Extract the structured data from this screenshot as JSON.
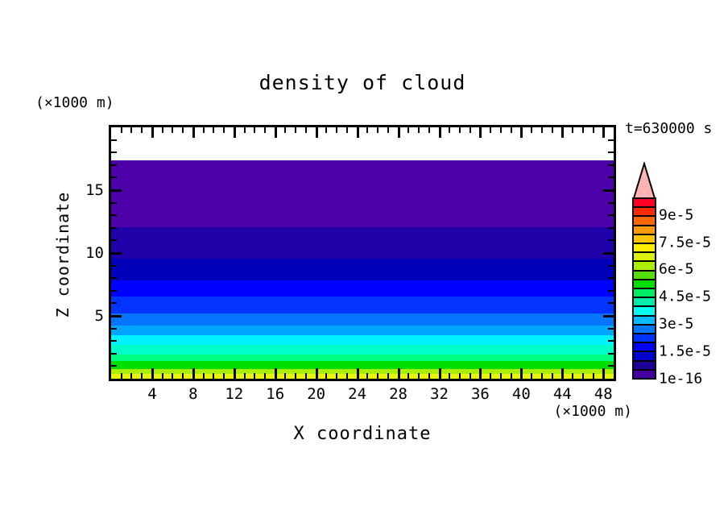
{
  "header": {
    "title": "density of cloud",
    "time_annotation": "t=630000 s"
  },
  "chart_data": {
    "type": "heatmap",
    "subtype": "filled-contour, field uniform along x (horizontal bands)",
    "title": "density of cloud",
    "xlabel": "X coordinate",
    "ylabel": "Z coordinate",
    "x_unit": "(×1000 m)",
    "y_unit": "(×1000 m)",
    "time_annotation": "t=630000 s",
    "xlim": [
      0,
      49
    ],
    "ylim": [
      0,
      20
    ],
    "x_major_ticks": [
      4,
      8,
      12,
      16,
      20,
      24,
      28,
      32,
      36,
      40,
      44,
      48
    ],
    "x_minor_step": 1,
    "y_major_ticks": [
      5,
      10,
      15
    ],
    "y_minor_step": 1,
    "grid": false,
    "bands_top_to_bottom": [
      {
        "z_from": 17.2,
        "z_to": 20.0,
        "value_range": "0 (no cloud)",
        "color": "#ffffff",
        "height_frac": 0.133
      },
      {
        "z_from": 12.0,
        "z_to": 17.2,
        "value_range": "1e-16 - 0.5e-5",
        "color": "#4b00a8",
        "height_frac": 0.266
      },
      {
        "z_from": 9.5,
        "z_to": 12.0,
        "value_range": "0.5e-5 - 1e-5",
        "color": "#2000a8",
        "height_frac": 0.1234
      },
      {
        "z_from": 7.8,
        "z_to": 9.5,
        "value_range": "1e-5 - 1.5e-5",
        "color": "#0000bb",
        "height_frac": 0.0865
      },
      {
        "z_from": 6.5,
        "z_to": 7.8,
        "value_range": "1.5e-5 - 2e-5",
        "color": "#0000ff",
        "height_frac": 0.0641
      },
      {
        "z_from": 5.2,
        "z_to": 6.5,
        "value_range": "2e-5 - 2.5e-5",
        "color": "#0333ff",
        "height_frac": 0.0673
      },
      {
        "z_from": 4.2,
        "z_to": 5.2,
        "value_range": "2.5e-5 - 3e-5",
        "color": "#0575ff",
        "height_frac": 0.0497
      },
      {
        "z_from": 3.4,
        "z_to": 4.2,
        "value_range": "3e-5 - 3.5e-5",
        "color": "#00a5ff",
        "height_frac": 0.0369
      },
      {
        "z_from": 2.7,
        "z_to": 3.4,
        "value_range": "3.5e-5 - 4e-5",
        "color": "#00f2ff",
        "height_frac": 0.0385
      },
      {
        "z_from": 1.9,
        "z_to": 2.7,
        "value_range": "4e-5 - 4.5e-5",
        "color": "#00ffc8",
        "height_frac": 0.04
      },
      {
        "z_from": 1.4,
        "z_to": 1.9,
        "value_range": "4.5e-5 - 5e-5",
        "color": "#00ff85",
        "height_frac": 0.024
      },
      {
        "z_from": 0.7,
        "z_to": 1.4,
        "value_range": "5e-5 - 5.5e-5",
        "color": "#00dd00",
        "height_frac": 0.0337
      },
      {
        "z_from": 0.35,
        "z_to": 0.7,
        "value_range": "5.5e-5 - 6e-5",
        "color": "#aaee00",
        "height_frac": 0.0192
      },
      {
        "z_from": 0.0,
        "z_to": 0.35,
        "value_range": "6e-5 - 6.5e-5",
        "color": "#e8f500",
        "height_frac": 0.0177
      }
    ],
    "colorbar": {
      "overflow_arrow_color": "#ffb3b3",
      "cells_top_to_bottom": [
        {
          "color": "#ff0022",
          "value_range": "9.5e-5 - 1e-4"
        },
        {
          "color": "#ff2a00",
          "value_range": "9e-5 - 9.5e-5"
        },
        {
          "color": "#ff6600",
          "value_range": "8.5e-5 - 9e-5"
        },
        {
          "color": "#ff9900",
          "value_range": "8e-5 - 8.5e-5"
        },
        {
          "color": "#ffc400",
          "value_range": "7.5e-5 - 8e-5"
        },
        {
          "color": "#ffee00",
          "value_range": "7e-5 - 7.5e-5"
        },
        {
          "color": "#ddf000",
          "value_range": "6.5e-5 - 7e-5"
        },
        {
          "color": "#aaee00",
          "value_range": "6e-5 - 6.5e-5"
        },
        {
          "color": "#55dd00",
          "value_range": "5.5e-5 - 6e-5"
        },
        {
          "color": "#00dd00",
          "value_range": "5e-5 - 5.5e-5"
        },
        {
          "color": "#00ee66",
          "value_range": "4.5e-5 - 5e-5"
        },
        {
          "color": "#00eeaa",
          "value_range": "4e-5 - 4.5e-5"
        },
        {
          "color": "#00ffee",
          "value_range": "3.5e-5 - 4e-5"
        },
        {
          "color": "#00bbff",
          "value_range": "3e-5 - 3.5e-5"
        },
        {
          "color": "#0077ff",
          "value_range": "2.5e-5 - 3e-5"
        },
        {
          "color": "#0033ff",
          "value_range": "2e-5 - 2.5e-5"
        },
        {
          "color": "#0000ff",
          "value_range": "1.5e-5 - 2e-5"
        },
        {
          "color": "#0000cc",
          "value_range": "1e-5 - 1.5e-5"
        },
        {
          "color": "#1c0099",
          "value_range": "0.5e-5 - 1e-5"
        },
        {
          "color": "#4400a0",
          "value_range": "1e-16 - 0.5e-5"
        }
      ],
      "labels_top_to_bottom": [
        "9e-5",
        "7.5e-5",
        "6e-5",
        "4.5e-5",
        "3e-5",
        "1.5e-5",
        "1e-16"
      ]
    }
  }
}
